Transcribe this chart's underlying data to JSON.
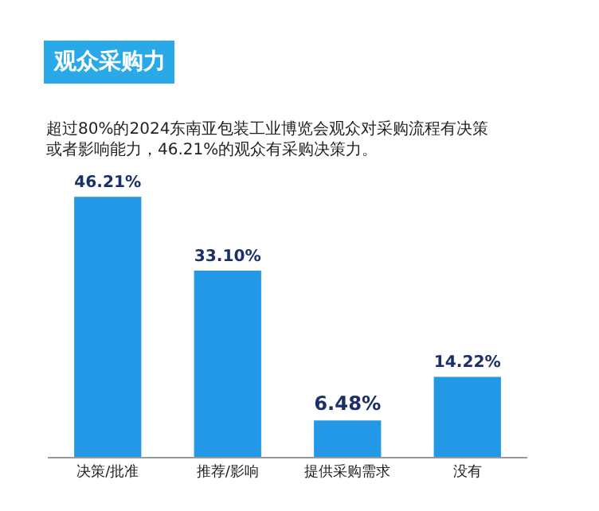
{
  "chart_data": {
    "type": "bar",
    "title": "观众采购力",
    "subtitle": "超过80%的2024东南亚包装工业博览会观众对采购流程有决策或者影响能力，46.21%的观众有采购决策力。",
    "categories": [
      "决策/批准",
      "推荐/影响",
      "提供采购需求",
      "没有"
    ],
    "values": [
      46.21,
      33.1,
      6.48,
      14.22
    ],
    "value_labels": [
      "46.21%",
      "33.10%",
      "6.48%",
      "14.22%"
    ],
    "color": "#2298e6",
    "legend": false,
    "tick_labels": "x"
  }
}
